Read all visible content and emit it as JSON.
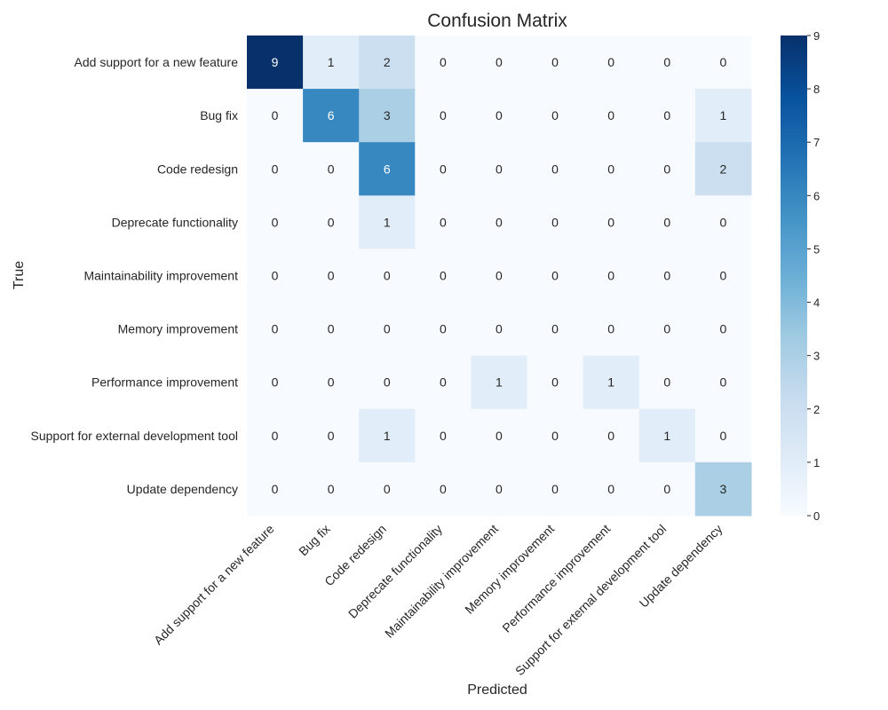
{
  "chart_data": {
    "type": "heatmap",
    "title": "Confusion Matrix",
    "xlabel": "Predicted",
    "ylabel": "True",
    "x_categories": [
      "Add support for a new feature",
      "Bug fix",
      "Code redesign",
      "Deprecate functionality",
      "Maintainability improvement",
      "Memory improvement",
      "Performance improvement",
      "Support for external development tool",
      "Update dependency"
    ],
    "y_categories": [
      "Add support for a new feature",
      "Bug fix",
      "Code redesign",
      "Deprecate functionality",
      "Maintainability improvement",
      "Memory improvement",
      "Performance improvement",
      "Support for external development tool",
      "Update dependency"
    ],
    "values": [
      [
        9,
        1,
        2,
        0,
        0,
        0,
        0,
        0,
        0
      ],
      [
        0,
        6,
        3,
        0,
        0,
        0,
        0,
        0,
        1
      ],
      [
        0,
        0,
        6,
        0,
        0,
        0,
        0,
        0,
        2
      ],
      [
        0,
        0,
        1,
        0,
        0,
        0,
        0,
        0,
        0
      ],
      [
        0,
        0,
        0,
        0,
        0,
        0,
        0,
        0,
        0
      ],
      [
        0,
        0,
        0,
        0,
        0,
        0,
        0,
        0,
        0
      ],
      [
        0,
        0,
        0,
        0,
        1,
        0,
        1,
        0,
        0
      ],
      [
        0,
        0,
        1,
        0,
        0,
        0,
        0,
        1,
        0
      ],
      [
        0,
        0,
        0,
        0,
        0,
        0,
        0,
        0,
        3
      ]
    ],
    "colorbar": {
      "min": 0,
      "max": 9,
      "ticks": [
        0,
        1,
        2,
        3,
        4,
        5,
        6,
        7,
        8,
        9
      ],
      "colormap": "Blues"
    }
  }
}
